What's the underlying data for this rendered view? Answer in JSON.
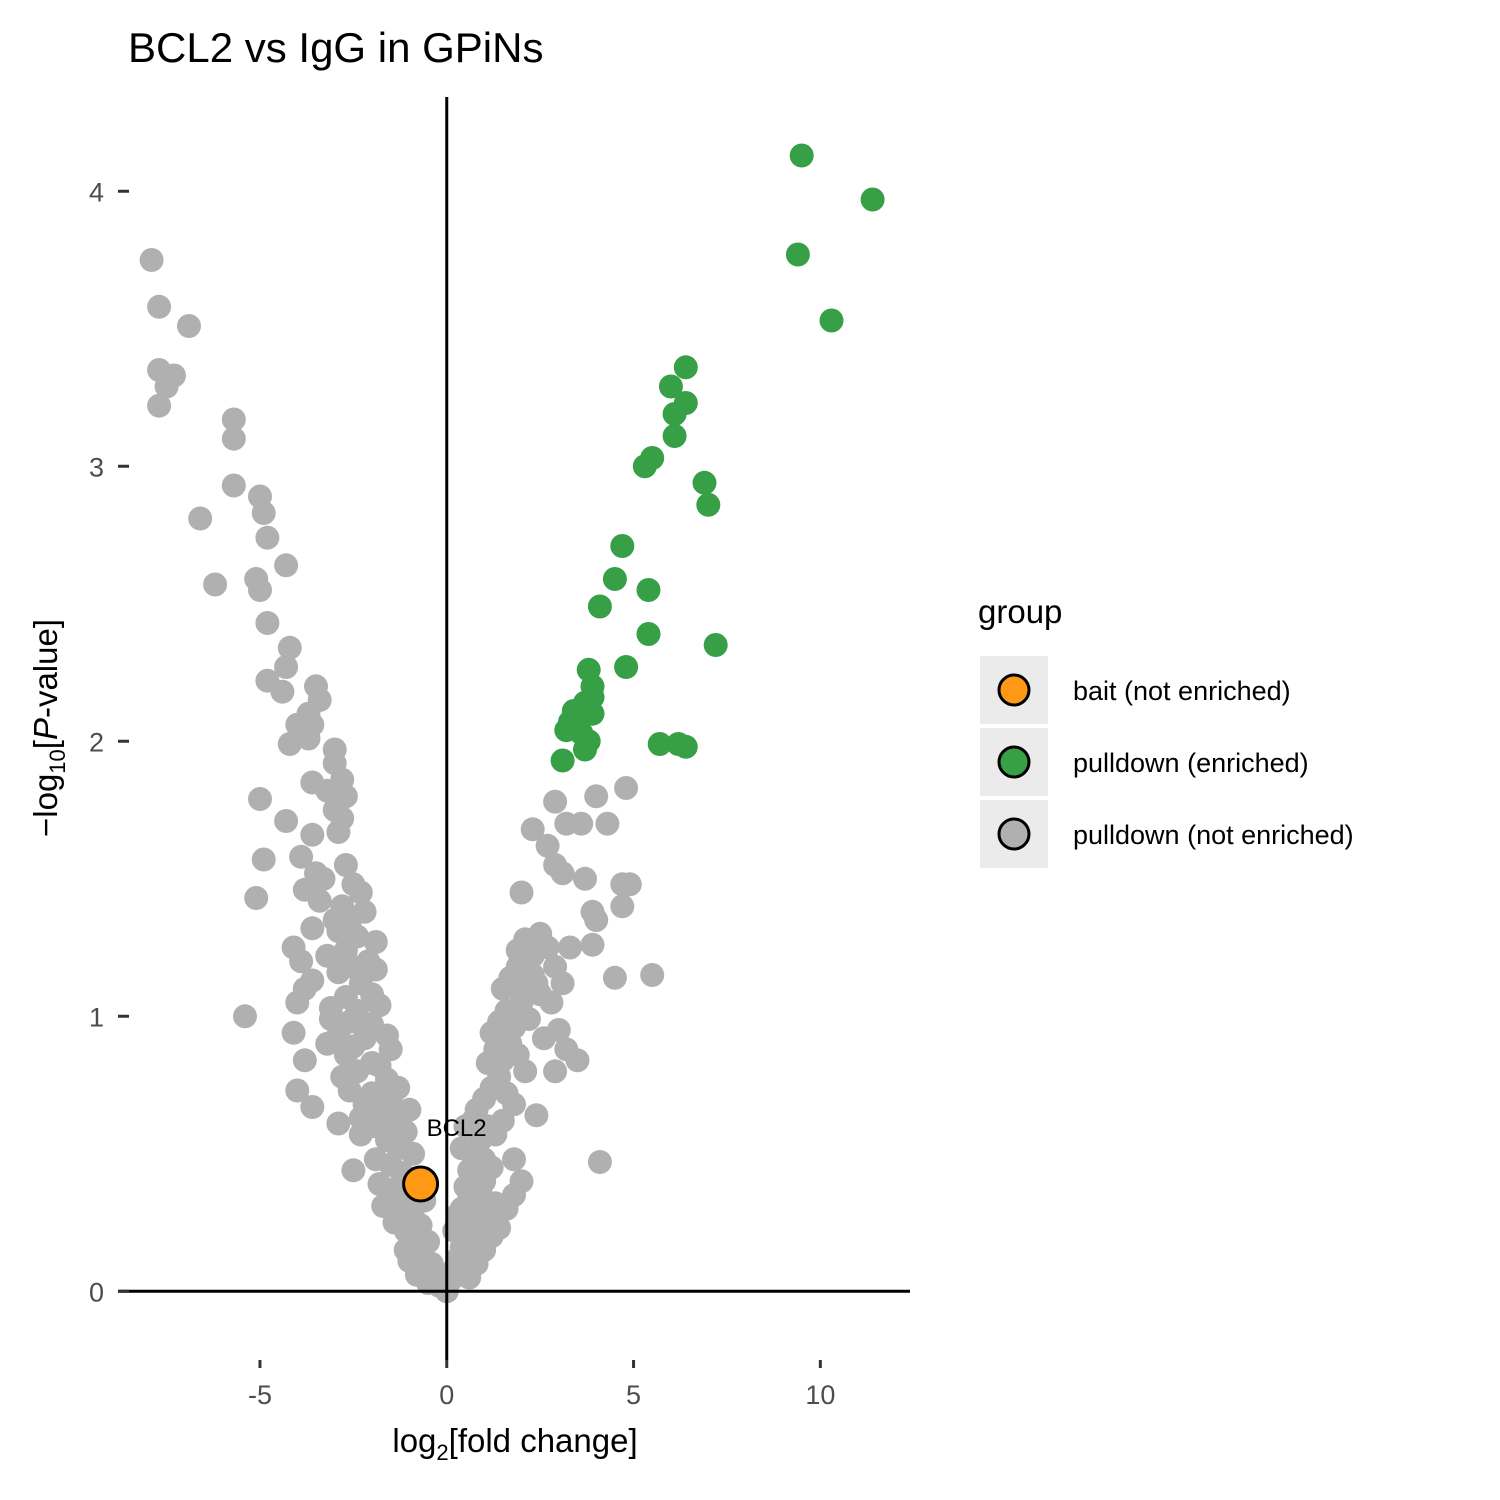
{
  "chart_data": {
    "type": "scatter",
    "title": "BCL2 vs IgG in GPiNs",
    "xlabel": "log2[fold change]",
    "ylabel": "-log10[P-value]",
    "xlim": [
      -8.8,
      12.4
    ],
    "ylim": [
      -0.25,
      4.35
    ],
    "x_ticks": [
      -5,
      0,
      5,
      10
    ],
    "x_tick_labels": [
      "-5",
      "0",
      "5",
      "10"
    ],
    "y_ticks": [
      0,
      1,
      2,
      3,
      4
    ],
    "y_tick_labels": [
      "0",
      "1",
      "2",
      "3",
      "4"
    ],
    "grid": false,
    "reference_lines": {
      "x": 0,
      "y": 0
    },
    "legend": {
      "title": "group",
      "position": "right",
      "entries": [
        {
          "label": "bait (not enriched)",
          "color": "#FF9915"
        },
        {
          "label": "pulldown (enriched)",
          "color": "#37A047"
        },
        {
          "label": "pulldown (not enriched)",
          "color": "#B0B0B0"
        }
      ]
    },
    "annotations": [
      {
        "text": "BCL2",
        "x": -0.7,
        "y": 0.39
      }
    ],
    "series": [
      {
        "name": "pulldown (not enriched)",
        "color": "#B0B0B0",
        "points": [
          [
            -7.9,
            3.75
          ],
          [
            -7.7,
            3.58
          ],
          [
            -6.9,
            3.51
          ],
          [
            -7.7,
            3.35
          ],
          [
            -7.3,
            3.33
          ],
          [
            -7.5,
            3.29
          ],
          [
            -7.7,
            3.22
          ],
          [
            -5.7,
            3.17
          ],
          [
            -5.7,
            3.1
          ],
          [
            -5.7,
            2.93
          ],
          [
            -5.0,
            2.89
          ],
          [
            -4.9,
            2.83
          ],
          [
            -6.6,
            2.81
          ],
          [
            -4.8,
            2.74
          ],
          [
            -4.3,
            2.64
          ],
          [
            -6.2,
            2.57
          ],
          [
            -5.1,
            2.59
          ],
          [
            -5.0,
            2.55
          ],
          [
            -4.8,
            2.43
          ],
          [
            -4.2,
            2.34
          ],
          [
            -4.3,
            2.27
          ],
          [
            -4.8,
            2.22
          ],
          [
            -4.4,
            2.18
          ],
          [
            -3.5,
            2.2
          ],
          [
            -3.4,
            2.15
          ],
          [
            -3.7,
            2.1
          ],
          [
            -3.6,
            2.06
          ],
          [
            -4.0,
            2.06
          ],
          [
            -3.9,
            2.03
          ],
          [
            -4.2,
            1.99
          ],
          [
            -3.7,
            2.01
          ],
          [
            -3.0,
            1.97
          ],
          [
            -3.0,
            1.92
          ],
          [
            -2.8,
            1.86
          ],
          [
            -3.6,
            1.85
          ],
          [
            -3.2,
            1.82
          ],
          [
            -2.7,
            1.8
          ],
          [
            -5.0,
            1.79
          ],
          [
            -3.0,
            1.75
          ],
          [
            -2.8,
            1.72
          ],
          [
            -4.3,
            1.71
          ],
          [
            -3.6,
            1.66
          ],
          [
            -2.9,
            1.67
          ],
          [
            -3.9,
            1.58
          ],
          [
            -4.9,
            1.57
          ],
          [
            -2.7,
            1.55
          ],
          [
            -3.5,
            1.52
          ],
          [
            -3.3,
            1.5
          ],
          [
            -2.5,
            1.48
          ],
          [
            -3.8,
            1.46
          ],
          [
            -2.3,
            1.45
          ],
          [
            -3.4,
            1.42
          ],
          [
            -5.1,
            1.43
          ],
          [
            -2.8,
            1.4
          ],
          [
            -2.2,
            1.38
          ],
          [
            -3.0,
            1.35
          ],
          [
            -2.6,
            1.34
          ],
          [
            -2.9,
            1.31
          ],
          [
            -3.6,
            1.32
          ],
          [
            -2.4,
            1.29
          ],
          [
            -1.9,
            1.27
          ],
          [
            -4.1,
            1.25
          ],
          [
            -2.7,
            1.24
          ],
          [
            -3.2,
            1.22
          ],
          [
            -2.1,
            1.2
          ],
          [
            -2.5,
            1.18
          ],
          [
            -3.9,
            1.2
          ],
          [
            -2.9,
            1.16
          ],
          [
            -1.9,
            1.17
          ],
          [
            -3.6,
            1.13
          ],
          [
            -2.3,
            1.12
          ],
          [
            -3.8,
            1.1
          ],
          [
            -2.0,
            1.08
          ],
          [
            -2.7,
            1.07
          ],
          [
            -4.0,
            1.05
          ],
          [
            -3.1,
            1.03
          ],
          [
            -2.4,
            1.02
          ],
          [
            -1.8,
            1.04
          ],
          [
            -5.4,
            1.0
          ],
          [
            -3.1,
            0.99
          ],
          [
            -2.6,
            0.98
          ],
          [
            -2.0,
            0.97
          ],
          [
            -4.1,
            0.94
          ],
          [
            -2.9,
            0.93
          ],
          [
            -2.2,
            0.92
          ],
          [
            -1.6,
            0.93
          ],
          [
            -3.2,
            0.9
          ],
          [
            -2.5,
            0.89
          ],
          [
            -1.5,
            0.88
          ],
          [
            -2.7,
            0.86
          ],
          [
            -3.8,
            0.84
          ],
          [
            -2.0,
            0.83
          ],
          [
            -1.8,
            0.82
          ],
          [
            -2.4,
            0.8
          ],
          [
            -2.8,
            0.78
          ],
          [
            -1.6,
            0.77
          ],
          [
            -1.3,
            0.74
          ],
          [
            -4.0,
            0.73
          ],
          [
            -2.6,
            0.73
          ],
          [
            -2.0,
            0.72
          ],
          [
            -1.5,
            0.7
          ],
          [
            -3.6,
            0.67
          ],
          [
            -2.2,
            0.68
          ],
          [
            -1.7,
            0.66
          ],
          [
            -1.0,
            0.66
          ],
          [
            -2.3,
            0.63
          ],
          [
            -1.4,
            0.62
          ],
          [
            -2.9,
            0.61
          ],
          [
            -1.9,
            0.6
          ],
          [
            -1.1,
            0.58
          ],
          [
            -2.3,
            0.57
          ],
          [
            -1.6,
            0.55
          ],
          [
            -1.3,
            0.52
          ],
          [
            -0.9,
            0.5
          ],
          [
            -1.9,
            0.48
          ],
          [
            -2.5,
            0.44
          ],
          [
            -1.5,
            0.46
          ],
          [
            -1.2,
            0.43
          ],
          [
            -0.8,
            0.41
          ],
          [
            -1.8,
            0.39
          ],
          [
            -1.4,
            0.37
          ],
          [
            -1.0,
            0.35
          ],
          [
            -0.6,
            0.33
          ],
          [
            -1.7,
            0.31
          ],
          [
            -1.2,
            0.29
          ],
          [
            -0.9,
            0.27
          ],
          [
            -1.4,
            0.25
          ],
          [
            -0.7,
            0.24
          ],
          [
            -1.1,
            0.22
          ],
          [
            -0.8,
            0.2
          ],
          [
            -0.5,
            0.18
          ],
          [
            -1.1,
            0.15
          ],
          [
            -0.7,
            0.13
          ],
          [
            -1.0,
            0.11
          ],
          [
            -0.4,
            0.1
          ],
          [
            -0.6,
            0.08
          ],
          [
            -0.8,
            0.06
          ],
          [
            -0.3,
            0.05
          ],
          [
            -0.5,
            0.03
          ],
          [
            -0.2,
            0.02
          ],
          [
            0.0,
            0.0
          ],
          [
            0.1,
            0.04
          ],
          [
            0.2,
            0.08
          ],
          [
            0.3,
            0.12
          ],
          [
            0.4,
            0.16
          ],
          [
            0.5,
            0.2
          ],
          [
            0.6,
            0.24
          ],
          [
            0.7,
            0.28
          ],
          [
            0.8,
            0.32
          ],
          [
            0.9,
            0.36
          ],
          [
            1.0,
            0.4
          ],
          [
            0.3,
            0.06
          ],
          [
            0.5,
            0.11
          ],
          [
            0.7,
            0.17
          ],
          [
            0.9,
            0.22
          ],
          [
            1.1,
            0.27
          ],
          [
            1.3,
            0.32
          ],
          [
            0.4,
            0.3
          ],
          [
            0.6,
            0.35
          ],
          [
            0.8,
            0.42
          ],
          [
            1.0,
            0.48
          ],
          [
            1.2,
            0.45
          ],
          [
            0.7,
            0.5
          ],
          [
            0.9,
            0.55
          ],
          [
            1.1,
            0.6
          ],
          [
            1.3,
            0.57
          ],
          [
            1.5,
            0.62
          ],
          [
            0.8,
            0.66
          ],
          [
            1.0,
            0.7
          ],
          [
            1.2,
            0.74
          ],
          [
            1.4,
            0.78
          ],
          [
            1.6,
            0.72
          ],
          [
            1.8,
            0.68
          ],
          [
            1.1,
            0.83
          ],
          [
            1.3,
            0.88
          ],
          [
            1.5,
            0.84
          ],
          [
            1.7,
            0.9
          ],
          [
            1.9,
            0.86
          ],
          [
            2.1,
            0.8
          ],
          [
            1.2,
            0.94
          ],
          [
            1.4,
            0.98
          ],
          [
            1.6,
            1.02
          ],
          [
            1.8,
            0.96
          ],
          [
            2.0,
            1.05
          ],
          [
            2.2,
            0.99
          ],
          [
            1.5,
            1.1
          ],
          [
            1.7,
            1.14
          ],
          [
            1.9,
            1.18
          ],
          [
            2.1,
            1.1
          ],
          [
            2.3,
            1.15
          ],
          [
            2.5,
            1.08
          ],
          [
            1.9,
            1.24
          ],
          [
            2.1,
            1.28
          ],
          [
            2.3,
            1.22
          ],
          [
            2.5,
            1.3
          ],
          [
            2.7,
            1.25
          ],
          [
            2.9,
            1.18
          ],
          [
            2.4,
            1.12
          ],
          [
            2.8,
            1.05
          ],
          [
            3.1,
            1.12
          ],
          [
            3.3,
            1.25
          ],
          [
            2.6,
            0.92
          ],
          [
            3.0,
            0.95
          ],
          [
            3.2,
            0.88
          ],
          [
            3.5,
            0.84
          ],
          [
            2.9,
            0.8
          ],
          [
            2.4,
            0.64
          ],
          [
            1.8,
            0.48
          ],
          [
            3.9,
            1.26
          ],
          [
            4.5,
            1.14
          ],
          [
            5.5,
            1.15
          ],
          [
            4.1,
            0.47
          ],
          [
            2.0,
            1.45
          ],
          [
            2.3,
            1.68
          ],
          [
            2.7,
            1.62
          ],
          [
            2.9,
            1.55
          ],
          [
            3.1,
            1.52
          ],
          [
            3.7,
            1.5
          ],
          [
            3.2,
            1.7
          ],
          [
            2.9,
            1.78
          ],
          [
            3.6,
            1.7
          ],
          [
            4.0,
            1.8
          ],
          [
            4.3,
            1.7
          ],
          [
            4.8,
            1.83
          ],
          [
            3.9,
            1.38
          ],
          [
            4.0,
            1.35
          ],
          [
            4.7,
            1.48
          ],
          [
            4.9,
            1.48
          ],
          [
            4.7,
            1.4
          ],
          [
            0.6,
            0.05
          ],
          [
            0.8,
            0.1
          ],
          [
            1.0,
            0.15
          ],
          [
            1.2,
            0.2
          ],
          [
            1.4,
            0.23
          ],
          [
            1.6,
            0.3
          ],
          [
            1.8,
            0.35
          ],
          [
            2.0,
            0.4
          ],
          [
            0.2,
            0.22
          ],
          [
            0.3,
            0.28
          ],
          [
            0.5,
            0.38
          ],
          [
            0.6,
            0.44
          ],
          [
            0.4,
            0.52
          ],
          [
            0.5,
            0.6
          ],
          [
            0.7,
            0.62
          ]
        ]
      },
      {
        "name": "pulldown (enriched)",
        "color": "#37A047",
        "points": [
          [
            9.5,
            4.13
          ],
          [
            11.4,
            3.97
          ],
          [
            9.4,
            3.77
          ],
          [
            10.3,
            3.53
          ],
          [
            6.4,
            3.36
          ],
          [
            6.0,
            3.29
          ],
          [
            6.4,
            3.23
          ],
          [
            6.1,
            3.19
          ],
          [
            6.1,
            3.11
          ],
          [
            5.5,
            3.03
          ],
          [
            5.3,
            3.0
          ],
          [
            6.9,
            2.94
          ],
          [
            7.0,
            2.86
          ],
          [
            4.7,
            2.71
          ],
          [
            4.5,
            2.59
          ],
          [
            5.4,
            2.55
          ],
          [
            4.1,
            2.49
          ],
          [
            5.4,
            2.39
          ],
          [
            7.2,
            2.35
          ],
          [
            4.8,
            2.27
          ],
          [
            3.8,
            2.26
          ],
          [
            3.9,
            2.2
          ],
          [
            3.9,
            2.16
          ],
          [
            3.7,
            2.14
          ],
          [
            3.9,
            2.1
          ],
          [
            3.6,
            2.11
          ],
          [
            3.4,
            2.11
          ],
          [
            3.3,
            2.07
          ],
          [
            3.2,
            2.04
          ],
          [
            3.6,
            2.03
          ],
          [
            3.8,
            2.0
          ],
          [
            3.7,
            1.97
          ],
          [
            5.7,
            1.99
          ],
          [
            6.2,
            1.99
          ],
          [
            6.4,
            1.98
          ],
          [
            3.1,
            1.93
          ]
        ]
      },
      {
        "name": "bait (not enriched)",
        "color": "#FF9915",
        "points": [
          [
            -0.7,
            0.39
          ]
        ]
      }
    ]
  }
}
